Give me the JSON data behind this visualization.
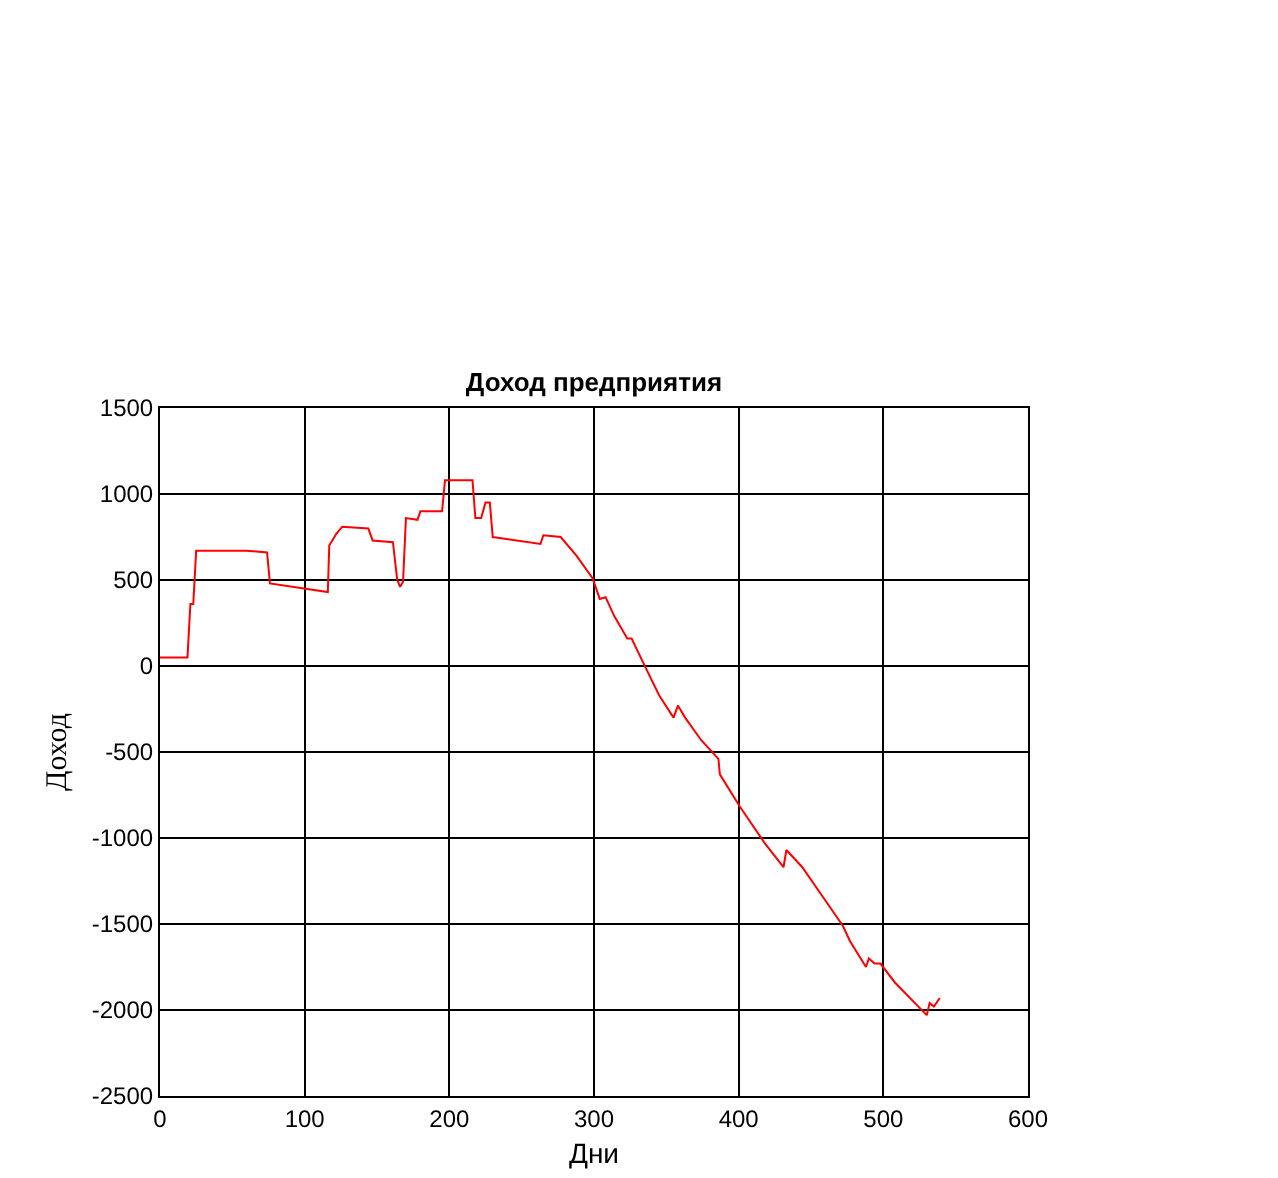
{
  "chart_data": {
    "type": "line",
    "title": "Доход предприятия",
    "xlabel": "Дни",
    "ylabel": "Доход",
    "x": [
      0,
      19,
      21,
      23,
      25,
      60,
      74,
      76,
      116,
      117,
      122,
      126,
      144,
      147,
      161,
      164,
      166,
      168,
      170,
      178,
      180,
      195,
      197,
      216,
      218,
      222,
      225,
      228,
      230,
      263,
      265,
      277,
      288,
      299,
      304,
      308,
      314,
      323,
      326,
      334,
      345,
      355,
      358,
      363,
      374,
      386,
      387,
      401,
      418,
      431,
      433,
      444,
      458,
      472,
      477,
      488,
      490,
      494,
      498,
      508,
      530,
      532,
      535,
      539
    ],
    "series": [
      {
        "color": "#ff0000",
        "values": [
          50,
          50,
          360,
          360,
          670,
          670,
          660,
          480,
          430,
          700,
          770,
          810,
          800,
          730,
          720,
          500,
          460,
          490,
          860,
          850,
          900,
          900,
          1080,
          1080,
          860,
          860,
          950,
          950,
          750,
          710,
          760,
          750,
          640,
          510,
          390,
          400,
          290,
          160,
          160,
          20,
          -170,
          -300,
          -230,
          -300,
          -430,
          -540,
          -630,
          -820,
          -1030,
          -1170,
          -1070,
          -1170,
          -1340,
          -1510,
          -1600,
          -1750,
          -1700,
          -1730,
          -1730,
          -1840,
          -2030,
          -1960,
          -1980,
          -1930
        ]
      }
    ],
    "xlim": [
      0,
      600
    ],
    "xticks": [
      0,
      100,
      200,
      300,
      400,
      500,
      600
    ],
    "ylim": [
      -2500,
      1500
    ],
    "yticks": [
      -2500,
      -2000,
      -1500,
      -1000,
      -500,
      0,
      500,
      1000,
      1500
    ],
    "grid": true,
    "line_style": "solid"
  }
}
